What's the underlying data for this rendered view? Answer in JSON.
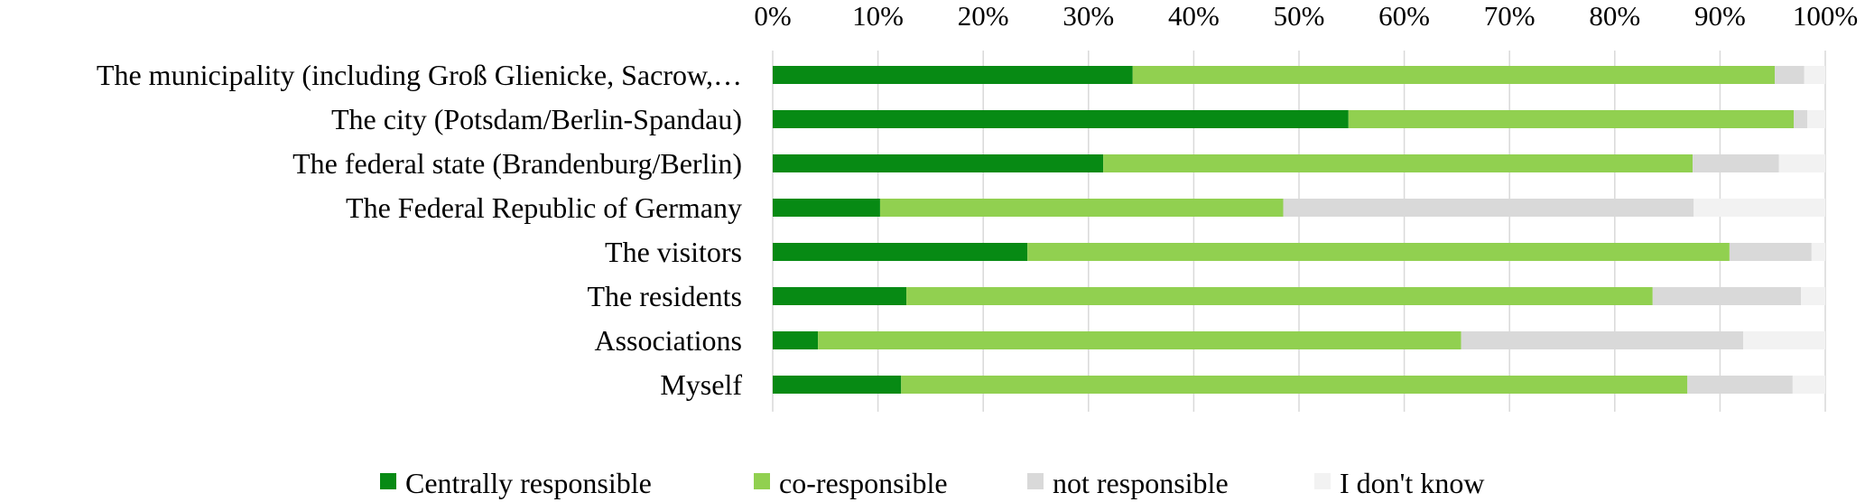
{
  "chart_data": {
    "type": "bar",
    "orientation": "horizontal",
    "stacked": "percent",
    "categories": [
      "The municipality (including Groß Glienicke, Sacrow,…",
      "The city (Potsdam/Berlin-Spandau)",
      "The federal state (Brandenburg/Berlin)",
      "The Federal Republic of Germany",
      "The visitors",
      "The residents",
      "Associations",
      "Myself"
    ],
    "series": [
      {
        "name": "Centrally responsible",
        "color": "#078a14",
        "values": [
          34.2,
          54.7,
          31.4,
          10.2,
          24.2,
          12.7,
          4.3,
          12.2
        ]
      },
      {
        "name": "co-responsible",
        "color": "#91d050",
        "values": [
          61.0,
          42.3,
          56.0,
          38.3,
          66.7,
          70.9,
          61.1,
          74.7
        ]
      },
      {
        "name": "not responsible",
        "color": "#d9d9d9",
        "values": [
          2.8,
          1.3,
          8.2,
          39.0,
          7.8,
          14.1,
          26.8,
          10.0
        ]
      },
      {
        "name": "I don't know",
        "color": "#f2f2f2",
        "values": [
          2.0,
          1.7,
          4.4,
          12.5,
          1.3,
          2.3,
          7.8,
          3.1
        ]
      }
    ],
    "xlim": [
      0,
      100
    ],
    "tick_labels": [
      "0%",
      "10%",
      "20%",
      "30%",
      "40%",
      "50%",
      "60%",
      "70%",
      "80%",
      "90%",
      "100%"
    ],
    "axis_position": "top",
    "grid": true,
    "legend_position": "bottom"
  }
}
